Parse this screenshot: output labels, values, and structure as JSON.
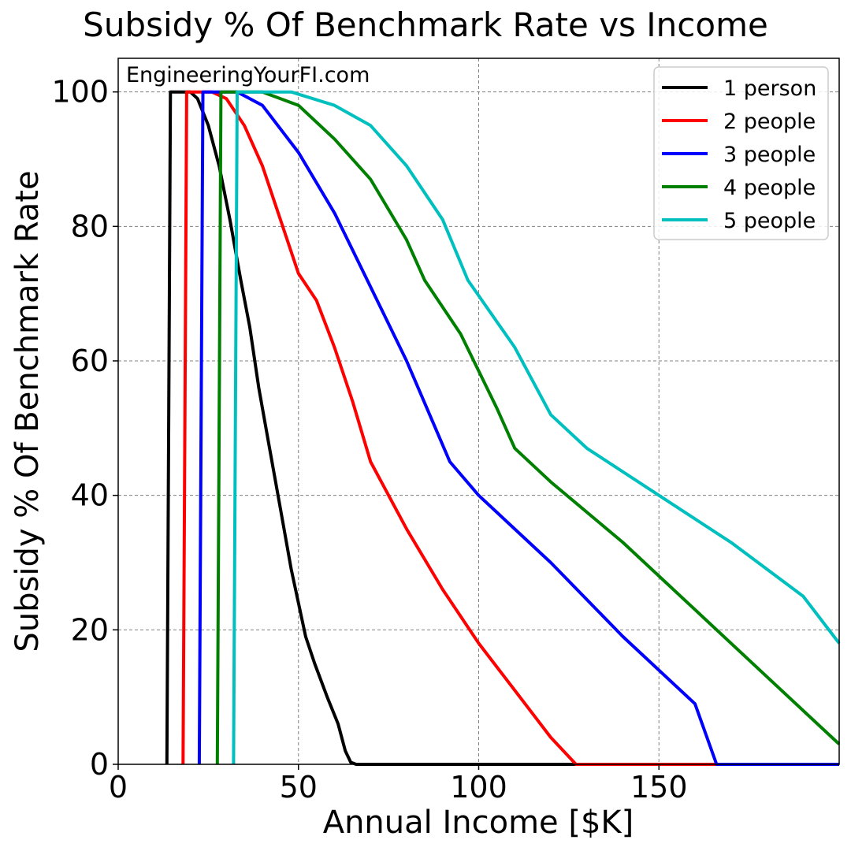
{
  "chart_data": {
    "type": "line",
    "title": "Subsidy % Of Benchmark Rate vs Income",
    "xlabel": "Annual Income [$K]",
    "ylabel": "Subsidy % Of Benchmark Rate",
    "watermark": "EngineeringYourFI.com",
    "xlim": [
      0,
      200
    ],
    "ylim": [
      0,
      105
    ],
    "xticks": [
      0,
      50,
      100,
      150
    ],
    "yticks": [
      0,
      20,
      40,
      60,
      80,
      100
    ],
    "grid": true,
    "legend_position": "top-right",
    "series": [
      {
        "name": "1 person",
        "color": "#000000",
        "points": [
          [
            13.5,
            0
          ],
          [
            14.5,
            100
          ],
          [
            20,
            100
          ],
          [
            22,
            99
          ],
          [
            25,
            95
          ],
          [
            28,
            89
          ],
          [
            31,
            81
          ],
          [
            34,
            72
          ],
          [
            36.5,
            65
          ],
          [
            39,
            56
          ],
          [
            42,
            47
          ],
          [
            45,
            38
          ],
          [
            48,
            29
          ],
          [
            52,
            19
          ],
          [
            54.5,
            15
          ],
          [
            58,
            10
          ],
          [
            61,
            6
          ],
          [
            63,
            2
          ],
          [
            64.5,
            0.3
          ],
          [
            66,
            0
          ],
          [
            200,
            0
          ]
        ]
      },
      {
        "name": "2 people",
        "color": "#ff0000",
        "points": [
          [
            18,
            0
          ],
          [
            19,
            100
          ],
          [
            26,
            100
          ],
          [
            30,
            99
          ],
          [
            35,
            95
          ],
          [
            40,
            89
          ],
          [
            45,
            81
          ],
          [
            50,
            73
          ],
          [
            55,
            69
          ],
          [
            60,
            62
          ],
          [
            65,
            54
          ],
          [
            70,
            45
          ],
          [
            73,
            42
          ],
          [
            80,
            35
          ],
          [
            90,
            26
          ],
          [
            100,
            18
          ],
          [
            110,
            11
          ],
          [
            120,
            4
          ],
          [
            127,
            0
          ],
          [
            200,
            0
          ]
        ]
      },
      {
        "name": "3 people",
        "color": "#0000ff",
        "points": [
          [
            22.5,
            0
          ],
          [
            23.5,
            100
          ],
          [
            33,
            100
          ],
          [
            40,
            98
          ],
          [
            50,
            91
          ],
          [
            60,
            82
          ],
          [
            70,
            71
          ],
          [
            80,
            60
          ],
          [
            88,
            50
          ],
          [
            92,
            45
          ],
          [
            100,
            40
          ],
          [
            120,
            30
          ],
          [
            140,
            19
          ],
          [
            160,
            9
          ],
          [
            166,
            0
          ],
          [
            200,
            0
          ]
        ]
      },
      {
        "name": "4 people",
        "color": "#008000",
        "points": [
          [
            27.5,
            0
          ],
          [
            28.5,
            100
          ],
          [
            40,
            100
          ],
          [
            50,
            98
          ],
          [
            60,
            93
          ],
          [
            70,
            87
          ],
          [
            80,
            78
          ],
          [
            85,
            72
          ],
          [
            95,
            64
          ],
          [
            105,
            53
          ],
          [
            110,
            47
          ],
          [
            120,
            42
          ],
          [
            140,
            33
          ],
          [
            160,
            23
          ],
          [
            180,
            13
          ],
          [
            200,
            3
          ]
        ]
      },
      {
        "name": "5 people",
        "color": "#00bfbf",
        "points": [
          [
            32,
            0
          ],
          [
            33,
            100
          ],
          [
            48,
            100
          ],
          [
            60,
            98
          ],
          [
            70,
            95
          ],
          [
            80,
            89
          ],
          [
            90,
            81
          ],
          [
            97,
            72
          ],
          [
            110,
            62
          ],
          [
            120,
            52
          ],
          [
            130,
            47
          ],
          [
            150,
            40
          ],
          [
            170,
            33
          ],
          [
            190,
            25
          ],
          [
            200,
            18
          ]
        ]
      }
    ]
  }
}
